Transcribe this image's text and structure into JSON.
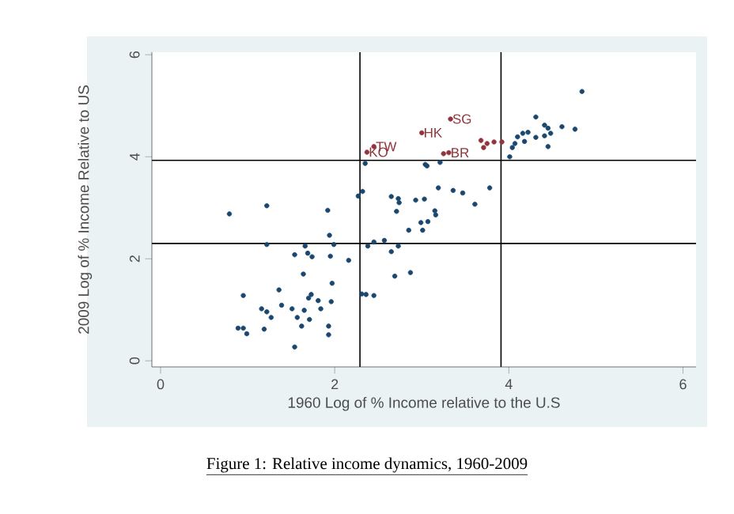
{
  "chart_data": {
    "type": "scatter",
    "xlabel": "1960 Log of % Income relative to the U.S",
    "ylabel": "2009 Log of % Income Relative to US",
    "xlim": [
      -0.1,
      6.15
    ],
    "ylim": [
      -0.12,
      6.05
    ],
    "xticks": [
      0,
      2,
      4,
      6
    ],
    "yticks": [
      0,
      2,
      4,
      6
    ],
    "marker": "circle",
    "series": [
      {
        "color": "#1a476f",
        "x": [
          0.79,
          1.22,
          1.92,
          2.27,
          2.32,
          2.65,
          2.73,
          2.74,
          2.93,
          3.03,
          2.71,
          2.99,
          2.85,
          3.01,
          1.94,
          1.22,
          1.66,
          1.99,
          2.45,
          2.57,
          2.38,
          2.65,
          2.73,
          1.54,
          1.69,
          1.74,
          1.95,
          2.16,
          1.64,
          2.69,
          2.87,
          1.97,
          1.36,
          0.95,
          1.73,
          1.7,
          1.81,
          1.96,
          2.31,
          2.36,
          2.45,
          1.39,
          1.16,
          1.22,
          1.51,
          1.65,
          1.84,
          1.57,
          1.71,
          1.27,
          0.89,
          0.95,
          0.99,
          1.19,
          1.62,
          1.93,
          1.93,
          1.54,
          4.84,
          4.31,
          4.41,
          4.45,
          4.61,
          4.76,
          4.16,
          4.22,
          4.1,
          4.31,
          4.41,
          4.48,
          4.45,
          4.18,
          4.07,
          4.04,
          4.01,
          3.06,
          3.21,
          2.35,
          3.04,
          3.78,
          3.61,
          3.19,
          3.36,
          3.47,
          3.15,
          3.16,
          3.07
        ],
        "values": [
          2.88,
          3.04,
          2.95,
          3.23,
          3.32,
          3.22,
          3.18,
          3.1,
          3.15,
          3.17,
          2.93,
          2.71,
          2.56,
          2.56,
          2.46,
          2.28,
          2.25,
          2.28,
          2.33,
          2.36,
          2.25,
          2.14,
          2.25,
          2.08,
          2.11,
          2.04,
          2.05,
          1.97,
          1.7,
          1.66,
          1.73,
          1.52,
          1.39,
          1.28,
          1.3,
          1.23,
          1.18,
          1.16,
          1.31,
          1.3,
          1.28,
          1.09,
          1.02,
          0.96,
          1.02,
          0.99,
          1.02,
          0.85,
          0.81,
          0.85,
          0.64,
          0.64,
          0.53,
          0.62,
          0.68,
          0.68,
          0.51,
          0.27,
          5.28,
          4.78,
          4.62,
          4.56,
          4.59,
          4.54,
          4.46,
          4.48,
          4.39,
          4.38,
          4.41,
          4.46,
          4.2,
          4.3,
          4.26,
          4.18,
          4.0,
          3.82,
          3.89,
          3.87,
          3.85,
          3.39,
          3.07,
          3.39,
          3.34,
          3.29,
          2.94,
          2.86,
          2.73
        ]
      },
      {
        "color": "#90353b",
        "x": [
          3.33,
          3.0,
          2.45,
          2.37,
          3.25,
          3.31,
          3.68,
          3.75,
          3.83,
          3.71,
          3.92
        ],
        "values": [
          4.74,
          4.47,
          4.2,
          4.09,
          4.06,
          4.08,
          4.32,
          4.26,
          4.29,
          4.18,
          4.29
        ]
      }
    ],
    "ref_lines": [
      {
        "axis": "x",
        "value": 2.29,
        "color": "#000000"
      },
      {
        "axis": "x",
        "value": 3.91,
        "color": "#000000"
      },
      {
        "axis": "y",
        "value": 3.93,
        "color": "#000000"
      },
      {
        "axis": "y",
        "value": 2.3,
        "color": "#000000"
      }
    ],
    "annotations": [
      {
        "text": "SG",
        "x": 3.33,
        "y": 4.74
      },
      {
        "text": "HK",
        "x": 3.0,
        "y": 4.47
      },
      {
        "text": "TW",
        "x": 2.45,
        "y": 4.2
      },
      {
        "text": "KO",
        "x": 2.37,
        "y": 4.09
      },
      {
        "text": "BR",
        "x": 3.31,
        "y": 4.08
      },
      "Figure 1: Relative income dynamics, 1960-2009"
    ]
  }
}
